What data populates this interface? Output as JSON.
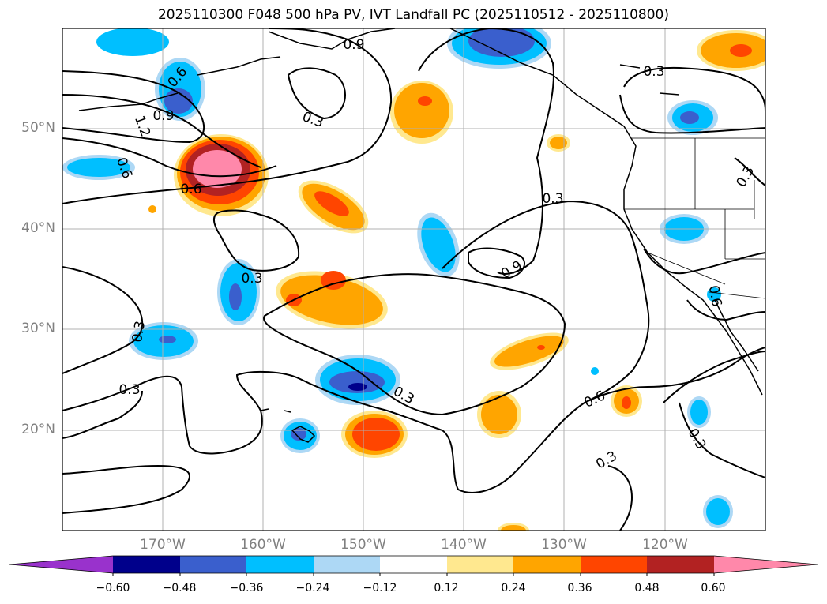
{
  "title": "2025110300 F048 500 hPa PV, IVT Landfall PC (2025110512 - 2025110800)",
  "map": {
    "projection": "plate-carree",
    "lon_range": [
      -180,
      -110
    ],
    "lat_range": [
      10,
      60
    ],
    "lat_ticks": [
      "50°N",
      "40°N",
      "30°N",
      "20°N"
    ],
    "lon_ticks": [
      "170°W",
      "160°W",
      "150°W",
      "140°W",
      "130°W",
      "120°W"
    ],
    "grid": true,
    "fields": {
      "filled": "IVT Landfall PC",
      "contours": "500 hPa PV"
    },
    "contour_labels": [
      "0.9",
      "0.6",
      "0.9",
      "1.2",
      "0.6",
      "0.3",
      "0.6",
      "0.3",
      "0.9",
      "0.3",
      "0.3",
      "0.3",
      "0.6",
      "0.3",
      "0.3",
      "0.3",
      "0.3",
      "0.6",
      "0.3"
    ]
  },
  "colorbar": {
    "ticks": [
      "−0.60",
      "−0.48",
      "−0.36",
      "−0.24",
      "−0.12",
      "0.12",
      "0.24",
      "0.36",
      "0.48",
      "0.60"
    ],
    "colors": [
      "#9932cc",
      "#00008b",
      "#3a5fcd",
      "#00bfff",
      "#add8f5",
      "#ffffff",
      "#ffe88f",
      "#ffa500",
      "#ff4500",
      "#b22222",
      "#ff88aa"
    ],
    "extend": "both"
  }
}
